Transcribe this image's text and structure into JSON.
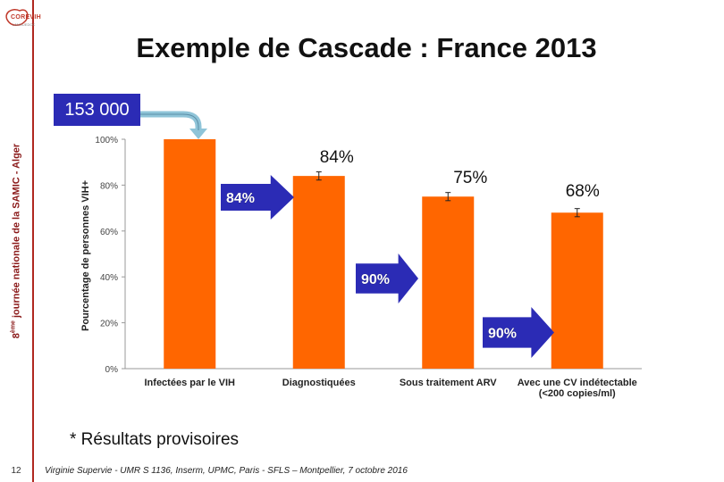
{
  "sidebar": {
    "logo_label": "COREVIH",
    "logo_sub": "LANGUEDOC",
    "caption_prefix": "8",
    "caption_sup": "ème",
    "caption_rest": " journée nationale de la SAMIC - Alger",
    "page_number": "12"
  },
  "slide": {
    "title": "Exemple de Cascade : France 2013",
    "total_label": "153 000",
    "footnote": "* Résultats provisoires",
    "footer": "Virginie Supervie - UMR S 1136, Inserm, UPMC, Paris - SFLS – Montpellier, 7 octobre 2016"
  },
  "colors": {
    "bar": "#ff6600",
    "arrow": "#2b2bb5",
    "total_box": "#2b2bb5",
    "callout_arrow": "#8fc4d8",
    "accent_red": "#b0281f"
  },
  "chart_data": {
    "type": "bar",
    "ylabel": "Pourcentage de personnes VIH+",
    "ylim": [
      0,
      100
    ],
    "yticks": [
      "0%",
      "20%",
      "40%",
      "60%",
      "80%",
      "100%"
    ],
    "categories": [
      [
        "Infectées par le VIH"
      ],
      [
        "Diagnostiquées"
      ],
      [
        "Sous traitement ARV"
      ],
      [
        "Avec une CV indétectable",
        "(<200 copies/ml)"
      ]
    ],
    "values": [
      100,
      84,
      75,
      68
    ],
    "error_bars": [
      0,
      1,
      1,
      1
    ],
    "bar_labels": [
      "",
      "84%",
      "75%",
      "68%"
    ],
    "step_arrows": [
      "84%",
      "90%",
      "90%"
    ]
  }
}
